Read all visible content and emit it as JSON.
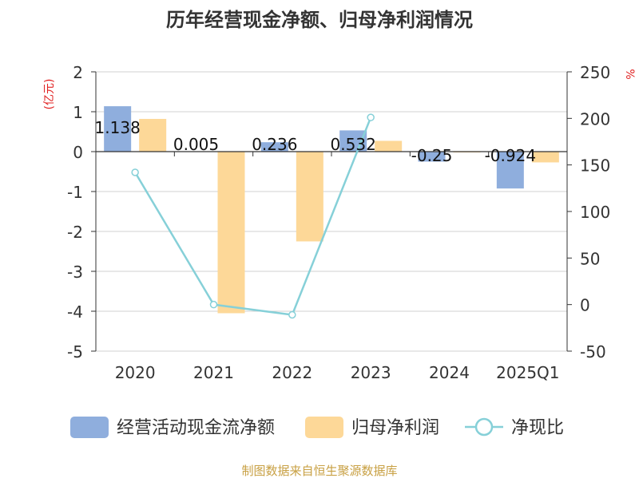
{
  "chart_data": {
    "type": "bar",
    "title": "历年经营现金净额、归母净利润情况",
    "categories": [
      "2020",
      "2021",
      "2022",
      "2023",
      "2024",
      "2025Q1"
    ],
    "y_left": {
      "label": "(亿元)",
      "min": -5,
      "max": 2,
      "ticks": [
        2,
        1,
        0,
        -1,
        -2,
        -3,
        -4,
        -5
      ]
    },
    "y_right": {
      "label": "%",
      "min": -50,
      "max": 250,
      "ticks": [
        250,
        200,
        150,
        100,
        50,
        0,
        -50
      ]
    },
    "series": [
      {
        "name": "经营活动现金流净额",
        "type": "bar",
        "axis": "left",
        "color": "#8faedd",
        "values": [
          1.138,
          0.005,
          0.236,
          0.532,
          -0.25,
          -0.924
        ],
        "labels": [
          "1.138",
          "0.005",
          "0.236",
          "0.532",
          "-0.25",
          "-0.924"
        ]
      },
      {
        "name": "归母净利润",
        "type": "bar",
        "axis": "left",
        "color": "#fdd898",
        "values": [
          0.82,
          -4.05,
          -2.25,
          0.27,
          -0.02,
          -0.27
        ]
      },
      {
        "name": "净现比",
        "type": "line",
        "axis": "right",
        "color": "#86d0d8",
        "values": [
          142,
          0,
          -11,
          201,
          null,
          null
        ]
      }
    ],
    "legend_position": "bottom",
    "source": "制图数据来自恒生聚源数据库"
  }
}
